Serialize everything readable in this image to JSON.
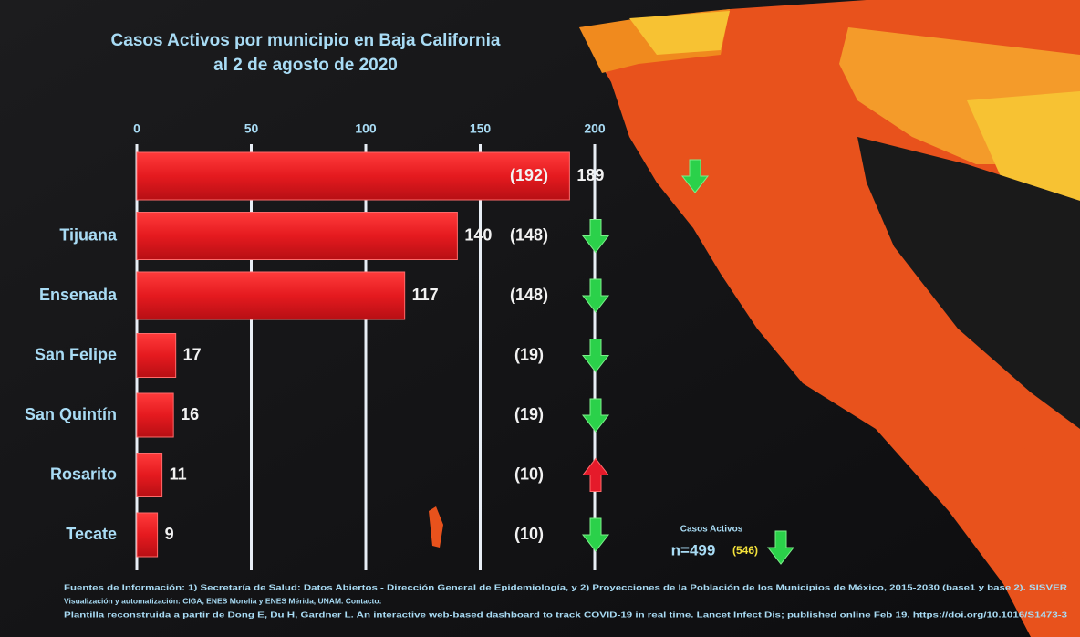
{
  "chart_data": {
    "type": "bar",
    "orientation": "horizontal",
    "title": [
      "Casos Activos por municipio en Baja California",
      "al 2 de agosto de 2020"
    ],
    "categories": [
      null,
      "Tijuana",
      "Ensenada",
      "San Felipe",
      "San Quintín",
      "Rosarito",
      "Tecate"
    ],
    "values": [
      189,
      140,
      117,
      17,
      16,
      11,
      9
    ],
    "color": "#e51a1f",
    "previous_labels": [
      "(192)",
      "(148)",
      "(148)",
      "(19)",
      "(19)",
      "(10)",
      "(10)"
    ],
    "trend": [
      "down",
      "down",
      "down",
      "down",
      "down",
      "up",
      "down"
    ],
    "xlim": [
      0,
      200
    ],
    "xticks": [
      0,
      50,
      100,
      150,
      200
    ],
    "grid": true,
    "summary": {
      "label": "Casos Activos",
      "total": "n=499",
      "previous": "(546)",
      "trend": "down"
    },
    "footer": [
      "Fuentes de Información: 1) Secretaría de Salud: Datos Abiertos - Dirección General de Epidemiología, y 2) Proyecciones de la Población de los Municipios de México, 2015-2030 (base1 y base 2). SISVER",
      "Visualización y automatización: CIGA, ENES Morelia y ENES Mérida, UNAM. Contacto:",
      "Plantilla reconstruida a partir de Dong E, Du H, Gardner L. An interactive web-based dashboard to track COVID-19 in real time. Lancet Infect Dis; published online Feb 19. https://doi.org/10.1016/S1473-3"
    ]
  }
}
